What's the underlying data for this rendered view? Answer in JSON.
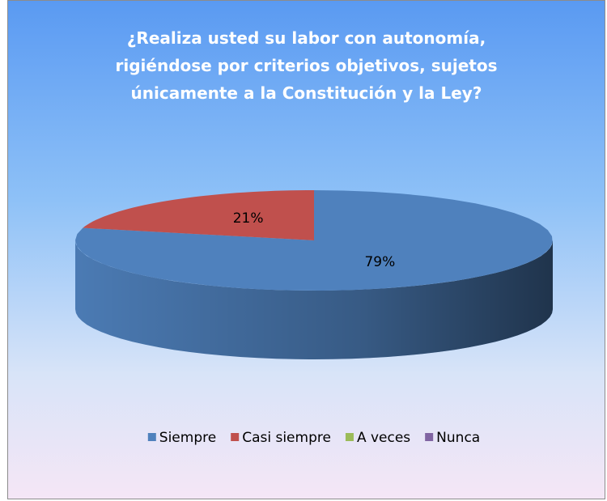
{
  "chart_data": {
    "type": "pie",
    "title": "¿Realiza usted su labor con autonomía,\nrigiéndose por criterios objetivos, sujetos\núnicamente a la Constitución y la Ley?",
    "categories": [
      "Siempre",
      "Casi siempre",
      "A veces",
      "Nunca"
    ],
    "values": [
      79,
      21,
      0,
      0
    ],
    "value_labels": [
      "79%",
      "21%",
      null,
      null
    ],
    "colors": [
      "#4f81bd",
      "#c0504d",
      "#9bbb59",
      "#8064a2"
    ],
    "legend": "bottom"
  }
}
